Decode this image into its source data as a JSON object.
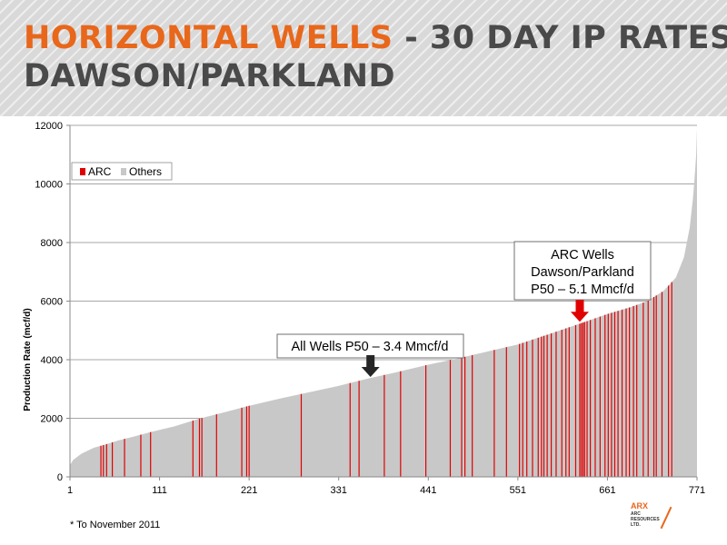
{
  "header": {
    "title_part1": "HORIZONTAL WELLS",
    "title_part2": " - 30 DAY IP RATES",
    "title_line2": "DAWSON/PARKLAND"
  },
  "footnote": "* To November 2011",
  "logo": {
    "brand": "ARX",
    "line1": "ARC",
    "line2": "RESOURCES",
    "line3": "LTD."
  },
  "colors": {
    "accent": "#e8671b",
    "arc": "#e00000",
    "others": "#c8c8c8",
    "arrow_all": "#262626"
  },
  "chart_data": {
    "type": "bar",
    "ylabel": "Production Rate (mcf/d)",
    "xlabel": "",
    "ylim": [
      0,
      12000
    ],
    "yticks": [
      0,
      2000,
      4000,
      6000,
      8000,
      10000,
      12000
    ],
    "xlim": [
      1,
      771
    ],
    "xticks": [
      1,
      111,
      221,
      331,
      441,
      551,
      661,
      771
    ],
    "grid": true,
    "legend_position": "top-left",
    "series": [
      {
        "name": "ARC",
        "color": "#e00000"
      },
      {
        "name": "Others",
        "color": "#c8c8c8"
      }
    ],
    "curve_points": [
      [
        1,
        400
      ],
      [
        5,
        580
      ],
      [
        15,
        790
      ],
      [
        30,
        990
      ],
      [
        45,
        1110
      ],
      [
        60,
        1240
      ],
      [
        80,
        1380
      ],
      [
        100,
        1530
      ],
      [
        130,
        1730
      ],
      [
        160,
        1990
      ],
      [
        190,
        2200
      ],
      [
        220,
        2420
      ],
      [
        260,
        2680
      ],
      [
        300,
        2920
      ],
      [
        330,
        3100
      ],
      [
        366,
        3350
      ],
      [
        400,
        3560
      ],
      [
        441,
        3830
      ],
      [
        480,
        4060
      ],
      [
        520,
        4320
      ],
      [
        551,
        4520
      ],
      [
        590,
        4880
      ],
      [
        627,
        5230
      ],
      [
        661,
        5560
      ],
      [
        690,
        5800
      ],
      [
        710,
        6000
      ],
      [
        730,
        6350
      ],
      [
        745,
        6800
      ],
      [
        755,
        7500
      ],
      [
        762,
        8500
      ],
      [
        766,
        9500
      ],
      [
        768,
        10200
      ],
      [
        770,
        11000
      ],
      [
        771,
        11900
      ]
    ],
    "arc_wells": [
      39,
      42,
      46,
      53,
      68,
      88,
      100,
      152,
      160,
      163,
      181,
      212,
      218,
      221,
      285,
      345,
      356,
      387,
      407,
      438,
      468,
      482,
      486,
      495,
      522,
      537,
      553,
      557,
      562,
      569,
      576,
      580,
      583,
      587,
      592,
      598,
      605,
      610,
      614,
      622,
      627,
      629,
      631,
      633,
      636,
      640,
      646,
      652,
      658,
      662,
      666,
      670,
      674,
      679,
      684,
      688,
      693,
      697,
      705,
      711,
      718,
      721,
      728,
      736,
      740
    ],
    "annotations": [
      {
        "text": "All Wells P50 – 3.4 Mmcf/d",
        "x": 370,
        "y": 3350
      },
      {
        "text_lines": [
          "ARC Wells",
          "Dawson/Parkland",
          "P50 – 5.1 Mmcf/d"
        ],
        "x": 627,
        "y": 5230
      }
    ]
  }
}
